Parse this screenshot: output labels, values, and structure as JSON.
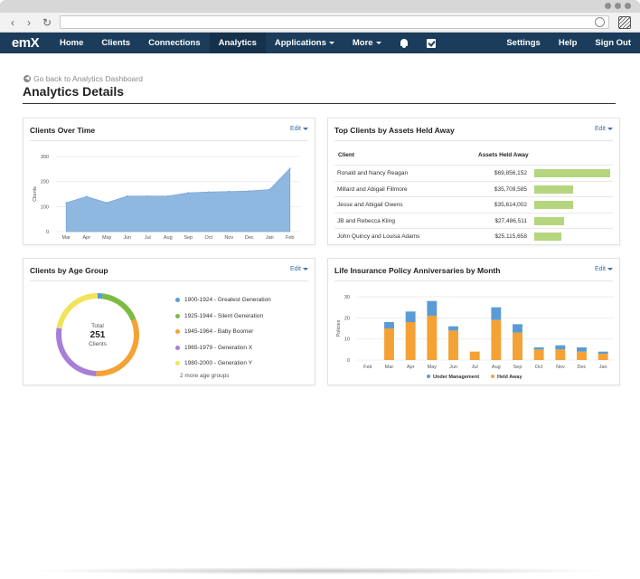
{
  "nav": {
    "logo": "emX",
    "items": [
      {
        "label": "Home"
      },
      {
        "label": "Clients"
      },
      {
        "label": "Connections"
      },
      {
        "label": "Analytics"
      },
      {
        "label": "Applications"
      },
      {
        "label": "More"
      }
    ],
    "right": [
      {
        "label": "Settings"
      },
      {
        "label": "Help"
      },
      {
        "label": "Sign Out"
      }
    ],
    "icons": [
      "bell-icon",
      "checkbox-icon"
    ]
  },
  "header": {
    "back_link": "Go back to Analytics Dashboard",
    "title": "Analytics Details"
  },
  "panels": {
    "clients_over_time": {
      "title": "Clients Over Time",
      "edit": "Edit"
    },
    "top_clients": {
      "title": "Top Clients by Assets Held Away",
      "edit": "Edit"
    },
    "age_group": {
      "title": "Clients by Age Group",
      "edit": "Edit"
    },
    "life_insurance": {
      "title": "Life Insurance Policy Anniversaries by Month",
      "edit": "Edit"
    }
  },
  "top_clients_table": {
    "col_client": "Client",
    "col_assets": "Assets Held Away",
    "rows": [
      {
        "client": "Ronald and Nancy Reagan",
        "assets": "$69,856,152",
        "value": 69856152
      },
      {
        "client": "Millard and Abigail Fillmore",
        "assets": "$35,709,585",
        "value": 35709585
      },
      {
        "client": "Jesse and Abigail Owens",
        "assets": "$35,614,002",
        "value": 35614002
      },
      {
        "client": "JB and Rebecca Kling",
        "assets": "$27,486,511",
        "value": 27486511
      },
      {
        "client": "John Quincy and Louisa Adams",
        "assets": "$25,115,658",
        "value": 25115658
      }
    ]
  },
  "age_legend": {
    "items": [
      {
        "label": "1900-1924 - Greatest Generation",
        "color": "#5b9bd5"
      },
      {
        "label": "1925-1944 - Silent Generation",
        "color": "#7dbb42"
      },
      {
        "label": "1945-1964 - Baby Boomer",
        "color": "#f4a235"
      },
      {
        "label": "1965-1979 - Generation X",
        "color": "#a77fd6"
      },
      {
        "label": "1980-2000 - Generation Y",
        "color": "#f1e35b"
      }
    ],
    "more": "2 more age groups"
  },
  "donut_center": {
    "label": "Total",
    "value": "251",
    "sub": "Clients"
  },
  "chart_data": [
    {
      "type": "area",
      "title": "Clients Over Time",
      "ylabel": "Clients",
      "categories": [
        "Mar",
        "Apr",
        "May",
        "Jun",
        "Jul",
        "Aug",
        "Sep",
        "Oct",
        "Nov",
        "Dec",
        "Jan",
        "Feb"
      ],
      "values": [
        115,
        140,
        115,
        142,
        142,
        142,
        155,
        158,
        160,
        162,
        168,
        252
      ],
      "ylim": [
        0,
        300
      ],
      "yticks": [
        "0",
        "100",
        "200",
        "300"
      ],
      "color": "#8fb8e0"
    },
    {
      "type": "pie",
      "title": "Clients by Age Group",
      "labels": [
        "1900-1924 - Greatest Generation",
        "1925-1944 - Silent Generation",
        "1945-1964 - Baby Boomer",
        "1965-1979 - Generation X",
        "1980-2000 - Generation Y"
      ],
      "values": [
        5,
        42,
        80,
        68,
        56
      ],
      "colors": [
        "#5b9bd5",
        "#7dbb42",
        "#f4a235",
        "#a77fd6",
        "#f1e35b"
      ]
    },
    {
      "type": "bar",
      "title": "Life Insurance Policy Anniversaries by Month",
      "ylabel": "Policies",
      "categories": [
        "Feb",
        "Mar",
        "Apr",
        "May",
        "Jun",
        "Jul",
        "Aug",
        "Sep",
        "Oct",
        "Nov",
        "Dec",
        "Jan"
      ],
      "series": [
        {
          "name": "Held Away",
          "values": [
            0,
            15,
            18,
            21,
            14,
            4,
            19,
            13,
            5,
            5,
            4,
            3
          ],
          "color": "#f4a235"
        },
        {
          "name": "Under Management",
          "values": [
            0,
            3,
            5,
            7,
            2,
            0,
            6,
            4,
            1,
            2,
            2,
            1
          ],
          "color": "#5b9bd5"
        }
      ],
      "ylim": [
        0,
        30
      ],
      "yticks": [
        "0",
        "10",
        "20",
        "30"
      ],
      "legend": "bottom"
    }
  ]
}
